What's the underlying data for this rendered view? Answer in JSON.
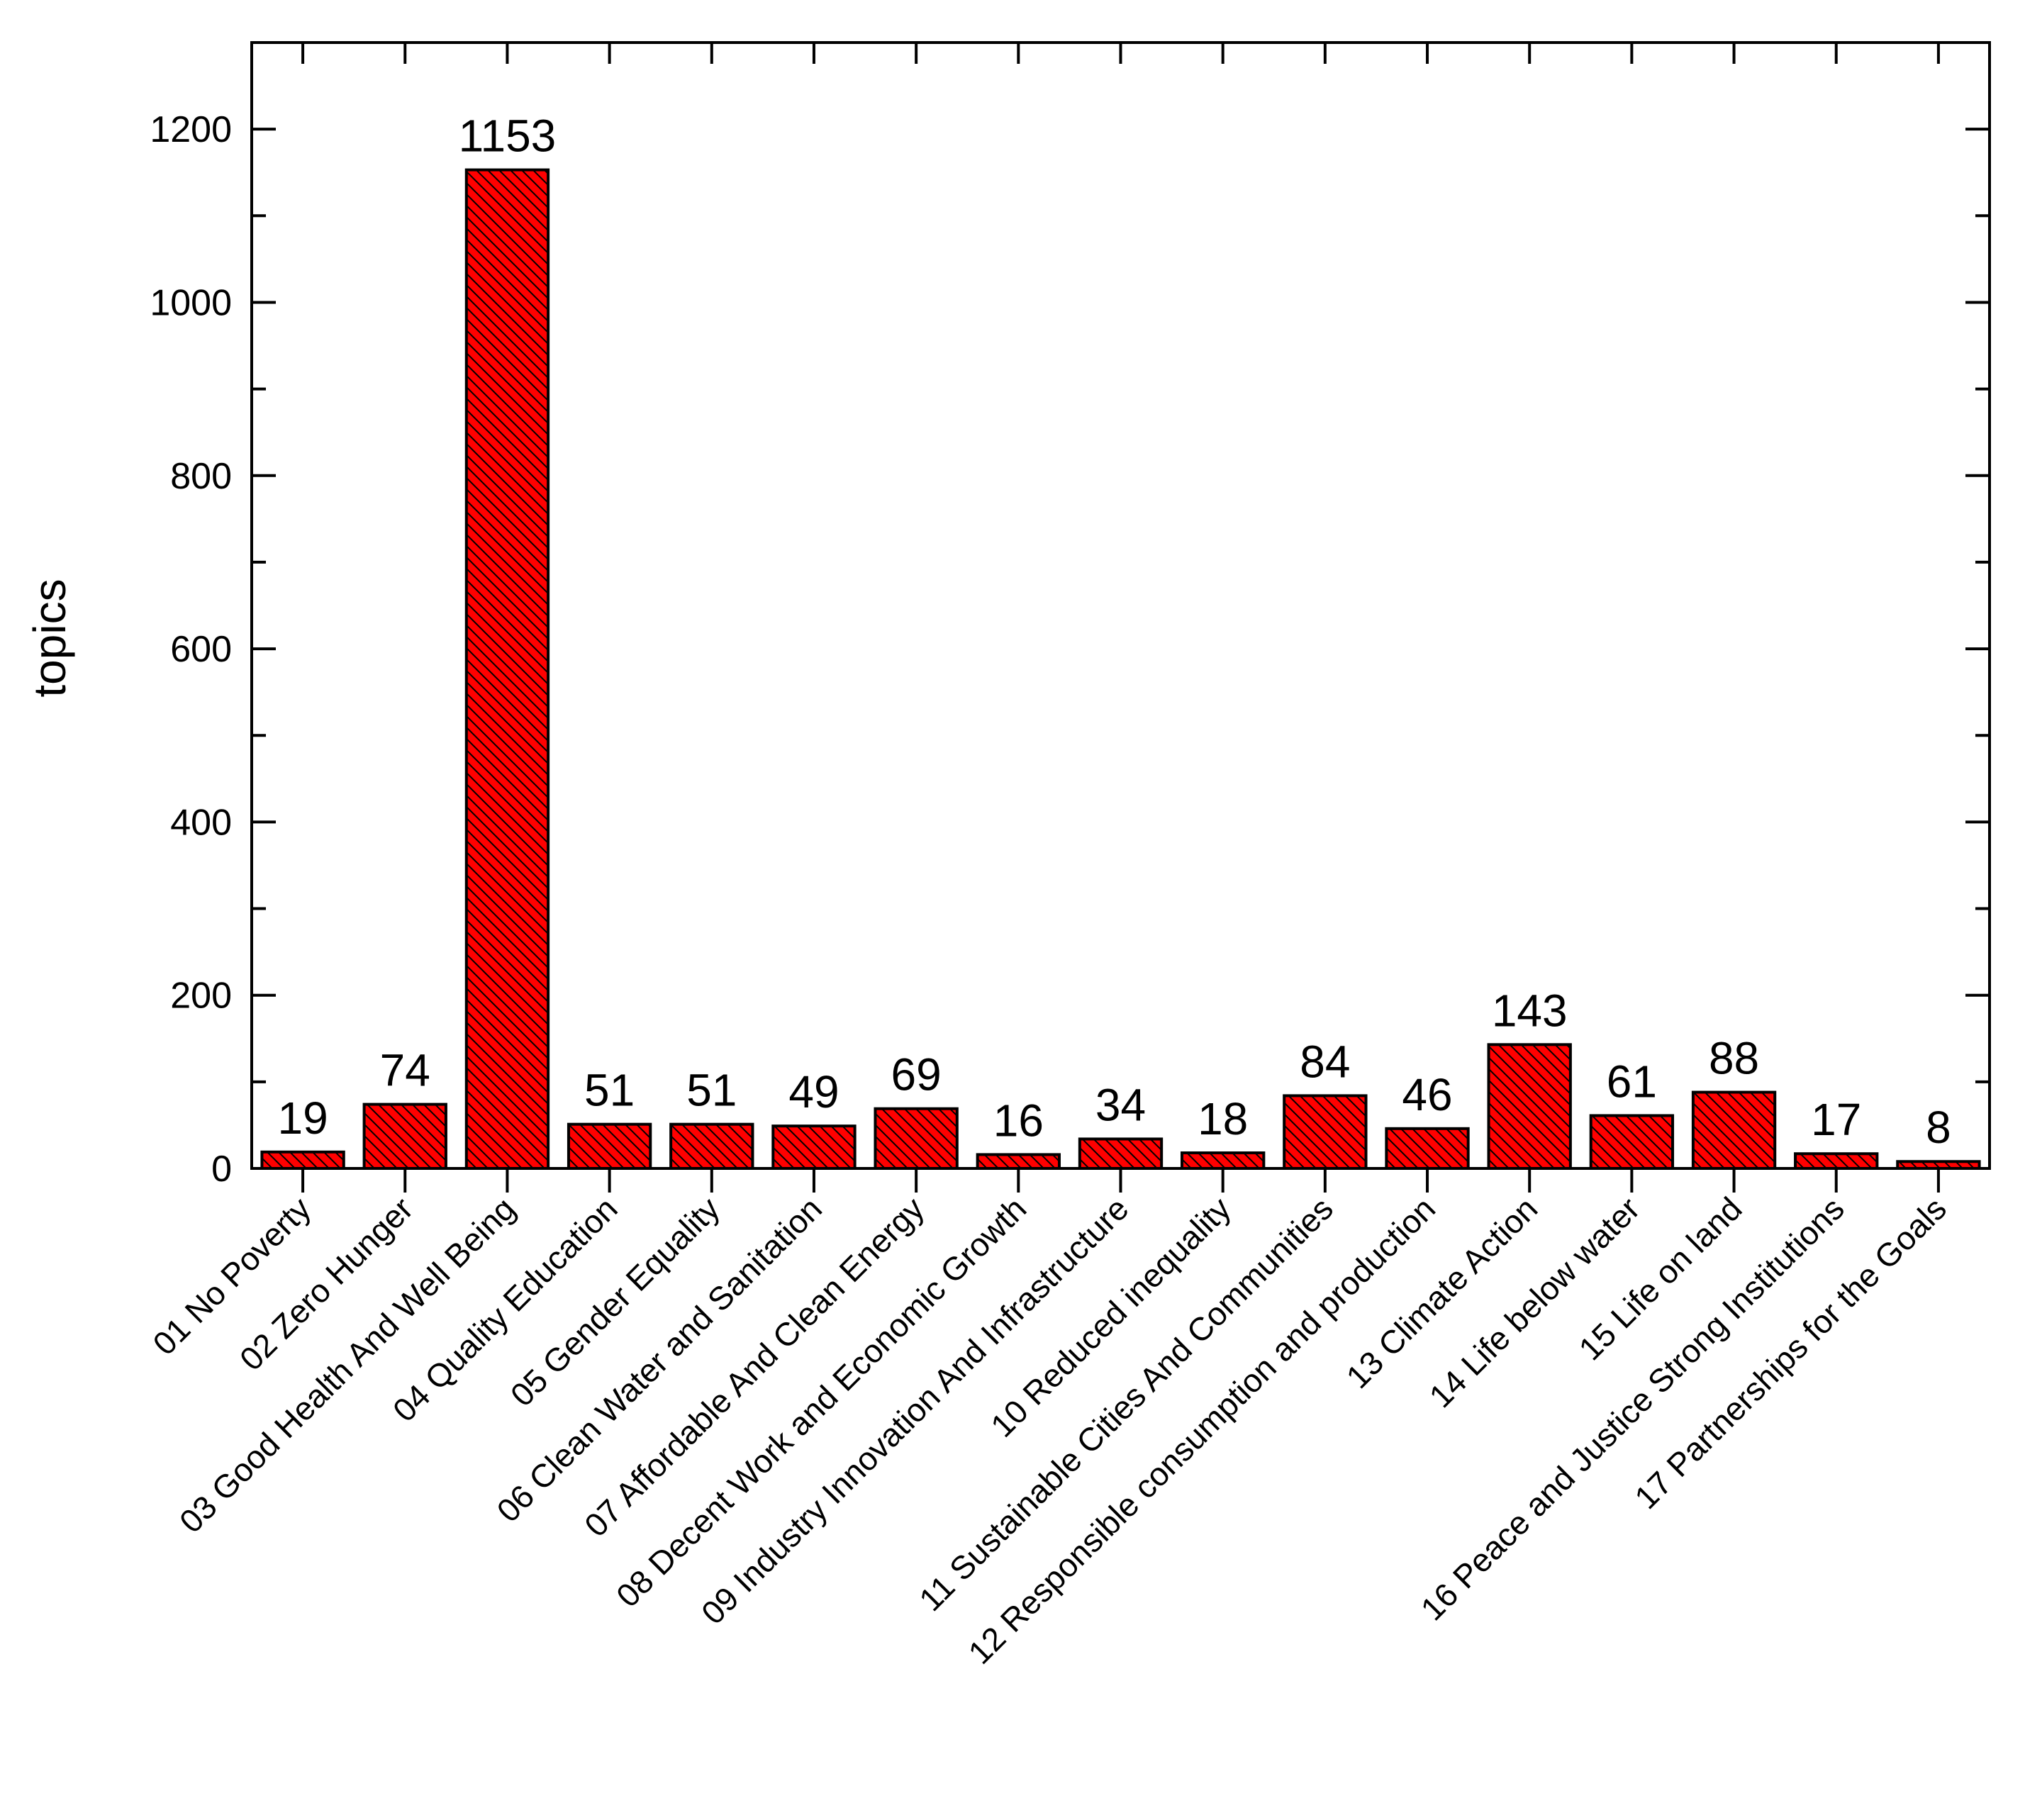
{
  "chart_data": {
    "type": "bar",
    "title": "",
    "xlabel": "",
    "ylabel": "topics",
    "ylim": [
      0,
      1300
    ],
    "yticks": [
      0,
      200,
      400,
      600,
      800,
      1000,
      1200
    ],
    "grid": false,
    "legend": "none",
    "bar_color": "#ff0000",
    "bar_edge_color": "#000000",
    "bar_hatch": "diagonal",
    "categories": [
      "01 No Poverty",
      "02 Zero Hunger",
      "03 Good Health And Well Being",
      "04 Quality Education",
      "05 Gender Equality",
      "06 Clean Water and Sanitation",
      "07 Affordable And Clean Energy",
      "08 Decent Work and Economic Growth",
      "09 Industry Innovation And Infrastructure",
      "10 Reduced inequality",
      "11 Sustainable Cities And Communities",
      "12 Responsible consumption and production",
      "13 Climate Action",
      "14 Life below water",
      "15 Life on land",
      "16 Peace and Justice Strong Institutions",
      "17 Partnerships for the Goals"
    ],
    "values": [
      19,
      74,
      1153,
      51,
      51,
      49,
      69,
      16,
      34,
      18,
      84,
      46,
      143,
      61,
      88,
      17,
      8
    ],
    "data_labels": [
      "19",
      "74",
      "1153",
      "51",
      "51",
      "49",
      "69",
      "16",
      "34",
      "18",
      "84",
      "46",
      "143",
      "61",
      "88",
      "17",
      "8"
    ]
  }
}
